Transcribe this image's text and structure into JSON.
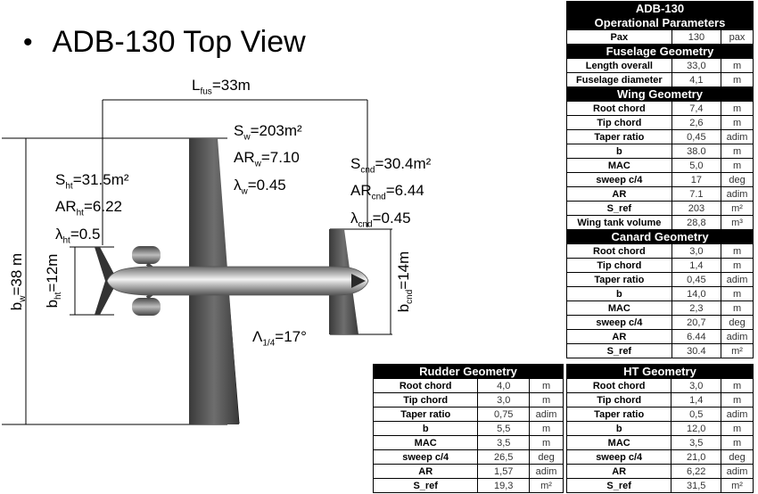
{
  "title": "ADB-130 Top View",
  "dims": {
    "lfus": {
      "main": "L",
      "sub": "fus",
      "rest": "=33m"
    },
    "sw": {
      "main": "S",
      "sub": "w",
      "rest": "=203m²"
    },
    "arw": {
      "main": "AR",
      "sub": "w",
      "rest": "=7.10"
    },
    "lw": {
      "main": "λ",
      "sub": "w",
      "rest": "=0.45"
    },
    "sht": {
      "main": "S",
      "sub": "ht",
      "rest": "=31.5m²"
    },
    "arht": {
      "main": "AR",
      "sub": "ht",
      "rest": "=6.22"
    },
    "lht": {
      "main": "λ",
      "sub": "ht",
      "rest": "=0.5"
    },
    "scnd": {
      "main": "S",
      "sub": "cnd",
      "rest": "=30.4m²"
    },
    "arcnd": {
      "main": "AR",
      "sub": "cnd",
      "rest": "=6.44"
    },
    "lcnd": {
      "main": "λ",
      "sub": "cnd",
      "rest": "=0.45"
    },
    "bw": {
      "main": "b",
      "sub": "w",
      "rest": "=38 m"
    },
    "bht": {
      "main": "b",
      "sub": "ht",
      "rest": "=12m"
    },
    "bcnd": {
      "main": "b",
      "sub": "cnd",
      "rest": "=14m"
    },
    "sweep": {
      "main": "Λ",
      "sub": "1/4",
      "rest": "=17°"
    }
  },
  "ops": {
    "title1": "ADB-130",
    "title2": "Operational Parameters",
    "rows": [
      [
        "Pax",
        "130",
        "pax"
      ]
    ],
    "sections": [
      {
        "title": "Fuselage Geometry",
        "rows": [
          [
            "Length overall",
            "33,0",
            "m"
          ],
          [
            "Fuselage diameter",
            "4,1",
            "m"
          ]
        ]
      },
      {
        "title": "Wing Geometry",
        "rows": [
          [
            "Root chord",
            "7,4",
            "m"
          ],
          [
            "Tip chord",
            "2,6",
            "m"
          ],
          [
            "Taper ratio",
            "0,45",
            "adim"
          ],
          [
            "b",
            "38.0",
            "m"
          ],
          [
            "MAC",
            "5,0",
            "m"
          ],
          [
            "sweep c/4",
            "17",
            "deg"
          ],
          [
            "AR",
            "7.1",
            "adim"
          ],
          [
            "S_ref",
            "203",
            "m²"
          ],
          [
            "Wing tank volume",
            "28,8",
            "m³"
          ]
        ]
      },
      {
        "title": "Canard Geometry",
        "rows": [
          [
            "Root chord",
            "3,0",
            "m"
          ],
          [
            "Tip chord",
            "1,4",
            "m"
          ],
          [
            "Taper ratio",
            "0,45",
            "adim"
          ],
          [
            "b",
            "14,0",
            "m"
          ],
          [
            "MAC",
            "2,3",
            "m"
          ],
          [
            "sweep c/4",
            "20,7",
            "deg"
          ],
          [
            "AR",
            "6.44",
            "adim"
          ],
          [
            "S_ref",
            "30.4",
            "m²"
          ]
        ]
      }
    ]
  },
  "rudder": {
    "title": "Rudder Geometry",
    "rows": [
      [
        "Root chord",
        "4,0",
        "m"
      ],
      [
        "Tip chord",
        "3,0",
        "m"
      ],
      [
        "Taper ratio",
        "0,75",
        "adim"
      ],
      [
        "b",
        "5,5",
        "m"
      ],
      [
        "MAC",
        "3,5",
        "m"
      ],
      [
        "sweep c/4",
        "26,5",
        "deg"
      ],
      [
        "AR",
        "1,57",
        "adim"
      ],
      [
        "S_ref",
        "19,3",
        "m²"
      ]
    ]
  },
  "ht": {
    "title": "HT Geometry",
    "rows": [
      [
        "Root chord",
        "3,0",
        "m"
      ],
      [
        "Tip chord",
        "1,4",
        "m"
      ],
      [
        "Taper ratio",
        "0,5",
        "adim"
      ],
      [
        "b",
        "12,0",
        "m"
      ],
      [
        "MAC",
        "3,5",
        "m"
      ],
      [
        "sweep c/4",
        "21,0",
        "deg"
      ],
      [
        "AR",
        "6,22",
        "adim"
      ],
      [
        "S_ref",
        "31,5",
        "m²"
      ]
    ]
  }
}
